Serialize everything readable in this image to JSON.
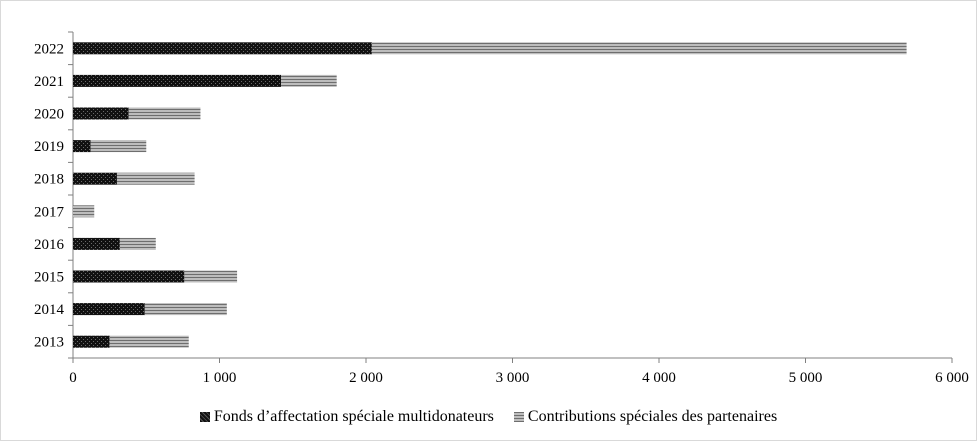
{
  "chart_data": {
    "type": "bar",
    "orientation": "horizontal",
    "stacked": true,
    "categories": [
      "2013",
      "2014",
      "2015",
      "2016",
      "2017",
      "2018",
      "2019",
      "2020",
      "2021",
      "2022"
    ],
    "series": [
      {
        "name": "Fonds d’affectation spéciale multidonateurs",
        "values": [
          250,
          490,
          760,
          320,
          0,
          300,
          120,
          380,
          1420,
          2040
        ],
        "color": "#111111"
      },
      {
        "name": "Contributions spéciales des partenaires",
        "values": [
          540,
          560,
          360,
          245,
          145,
          530,
          380,
          490,
          380,
          3650
        ],
        "color": "#9a9a9a"
      }
    ],
    "xlim": [
      0,
      6000
    ],
    "xticks": [
      0,
      1000,
      2000,
      3000,
      4000,
      5000,
      6000
    ],
    "xtick_labels": [
      "0",
      "1 000",
      "2 000",
      "3 000",
      "4 000",
      "5 000",
      "6 000"
    ],
    "grid": false,
    "legend_position": "bottom",
    "title": "",
    "xlabel": "",
    "ylabel": ""
  }
}
